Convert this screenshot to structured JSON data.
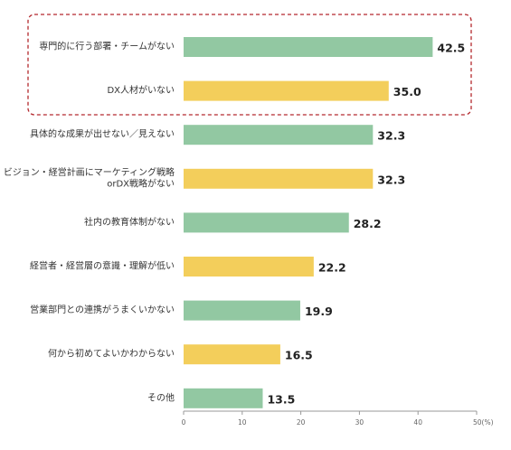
{
  "chart_data": {
    "type": "bar",
    "orientation": "horizontal",
    "categories": [
      [
        "専門的に行う部署・チームがない"
      ],
      [
        "DX人材がいない"
      ],
      [
        "具体的な成果が出せない／見えない"
      ],
      [
        "ビジョン・経営計画にマーケティング戦略",
        "orDX戦略がない"
      ],
      [
        "社内の教育体制がない"
      ],
      [
        "経営者・経営層の意識・理解が低い"
      ],
      [
        "営業部門との連携がうまくいかない"
      ],
      [
        "何から初めてよいかわからない"
      ],
      [
        "その他"
      ]
    ],
    "values": [
      42.5,
      35.0,
      32.3,
      32.3,
      28.2,
      22.2,
      19.9,
      16.5,
      13.5
    ],
    "value_labels": [
      "42.5",
      "35.0",
      "32.3",
      "32.3",
      "28.2",
      "22.2",
      "19.9",
      "16.5",
      "13.5"
    ],
    "xlim": [
      0,
      50
    ],
    "x_ticks": [
      "0",
      "10",
      "20",
      "30",
      "40",
      "50(%)"
    ],
    "grid": false,
    "highlight": {
      "first_index": 0,
      "last_index": 1,
      "style": "dashed-rounded-box"
    },
    "colors": {
      "green": "#92c8a2",
      "yellow": "#f3ce5b",
      "highlight_border": "#b3282d",
      "axis": "#999999"
    }
  }
}
